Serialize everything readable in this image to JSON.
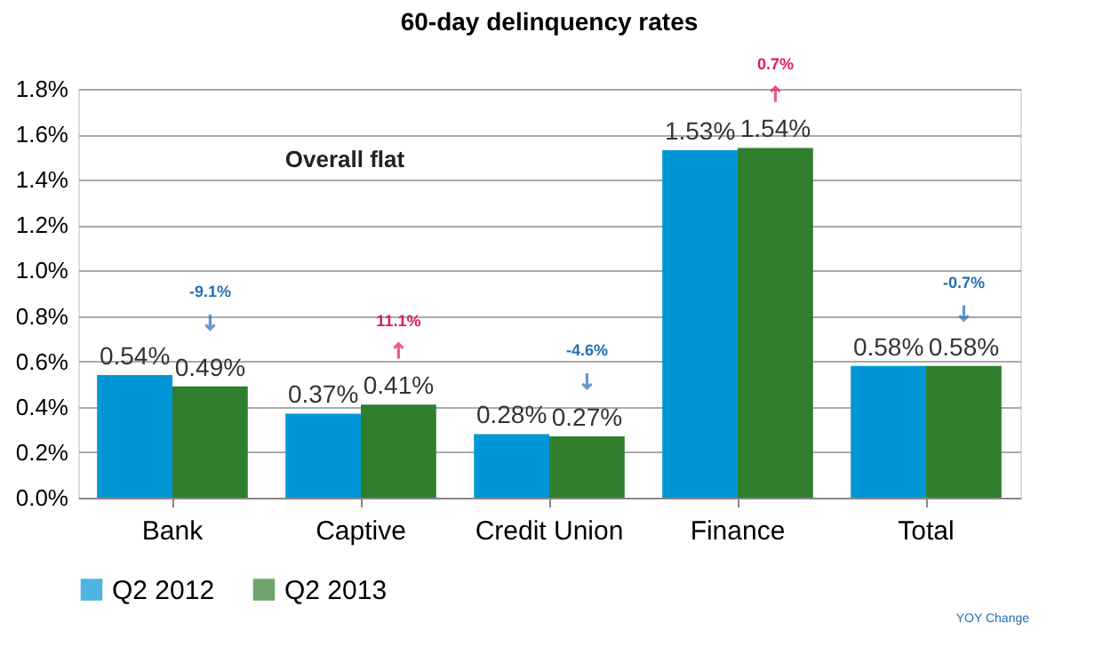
{
  "chart_data": {
    "type": "bar",
    "title": "60-day delinquency  rates",
    "categories": [
      "Bank",
      "Captive",
      "Credit Union",
      "Finance",
      "Total"
    ],
    "series": [
      {
        "name": "Q2 2012",
        "color": "#0096d6",
        "values": [
          0.54,
          0.37,
          0.28,
          1.53,
          0.58
        ],
        "value_labels": [
          "0.54%",
          "0.37%",
          "0.28%",
          "1.53%",
          "0.58%"
        ]
      },
      {
        "name": "Q2 2013",
        "color": "#2f7f2f",
        "values": [
          0.49,
          0.41,
          0.27,
          1.54,
          0.58
        ],
        "value_labels": [
          "0.49%",
          "0.41%",
          "0.27%",
          "1.54%",
          "0.58%"
        ]
      }
    ],
    "ylim": [
      0,
      1.8
    ],
    "yticks": [
      {
        "value": 0,
        "label": "0.0%"
      },
      {
        "value": 0.2,
        "label": "0.2%"
      },
      {
        "value": 0.4,
        "label": "0.4%"
      },
      {
        "value": 0.6,
        "label": "0.6%"
      },
      {
        "value": 0.8,
        "label": "0.8%"
      },
      {
        "value": 1.0,
        "label": "1.0%"
      },
      {
        "value": 1.2,
        "label": "1.2%"
      },
      {
        "value": 1.4,
        "label": "1.4%"
      },
      {
        "value": 1.6,
        "label": "1.6%"
      },
      {
        "value": 1.8,
        "label": "1.8%"
      }
    ],
    "grid": "y",
    "legend": "bottom",
    "annotations": [
      "Overall flat",
      "YOY Change",
      "-9.1%",
      "11.1%",
      "-4.6%",
      "0.7%",
      "-0.7%"
    ]
  }
}
